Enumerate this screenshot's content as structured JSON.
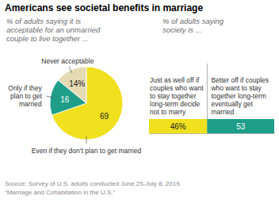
{
  "title": "Americans see societal benefits in marriage",
  "source": [
    "Source: Survey of U.S. adults conducted June 25-July 8, 2019.",
    "“Marriage and Cohabitation in the U.S.”"
  ],
  "chart_data": [
    {
      "type": "pie",
      "subtitle": "% of adults saying it is acceptable for an unmarried couple to live together ...",
      "categories": [
        "Even if they don’t plan to get married",
        "Only if they plan to get married",
        "Never acceptable"
      ],
      "values": [
        69,
        16,
        14
      ],
      "value_labels": [
        "69",
        "16",
        "14%"
      ],
      "colors": [
        "#f0e01e",
        "#1e9e88",
        "#e6dab5"
      ],
      "data_labels": true
    },
    {
      "type": "bar",
      "orientation": "horizontal",
      "stacked": true,
      "subtitle": "% of adults saying society is ...",
      "categories": [
        null
      ],
      "series": [
        {
          "name": "Just as well off if couples who want to stay together long-term decide not to marry",
          "color": "#f0e01e",
          "values": [
            46
          ],
          "value_labels": [
            "46%"
          ]
        },
        {
          "name": "Better off if couples who want to stay together long-term eventually get married",
          "color": "#1e9e88",
          "values": [
            53
          ],
          "value_labels": [
            "53"
          ]
        }
      ],
      "xlim": [
        0,
        99
      ],
      "tick_labels": false,
      "data_labels": true
    }
  ]
}
